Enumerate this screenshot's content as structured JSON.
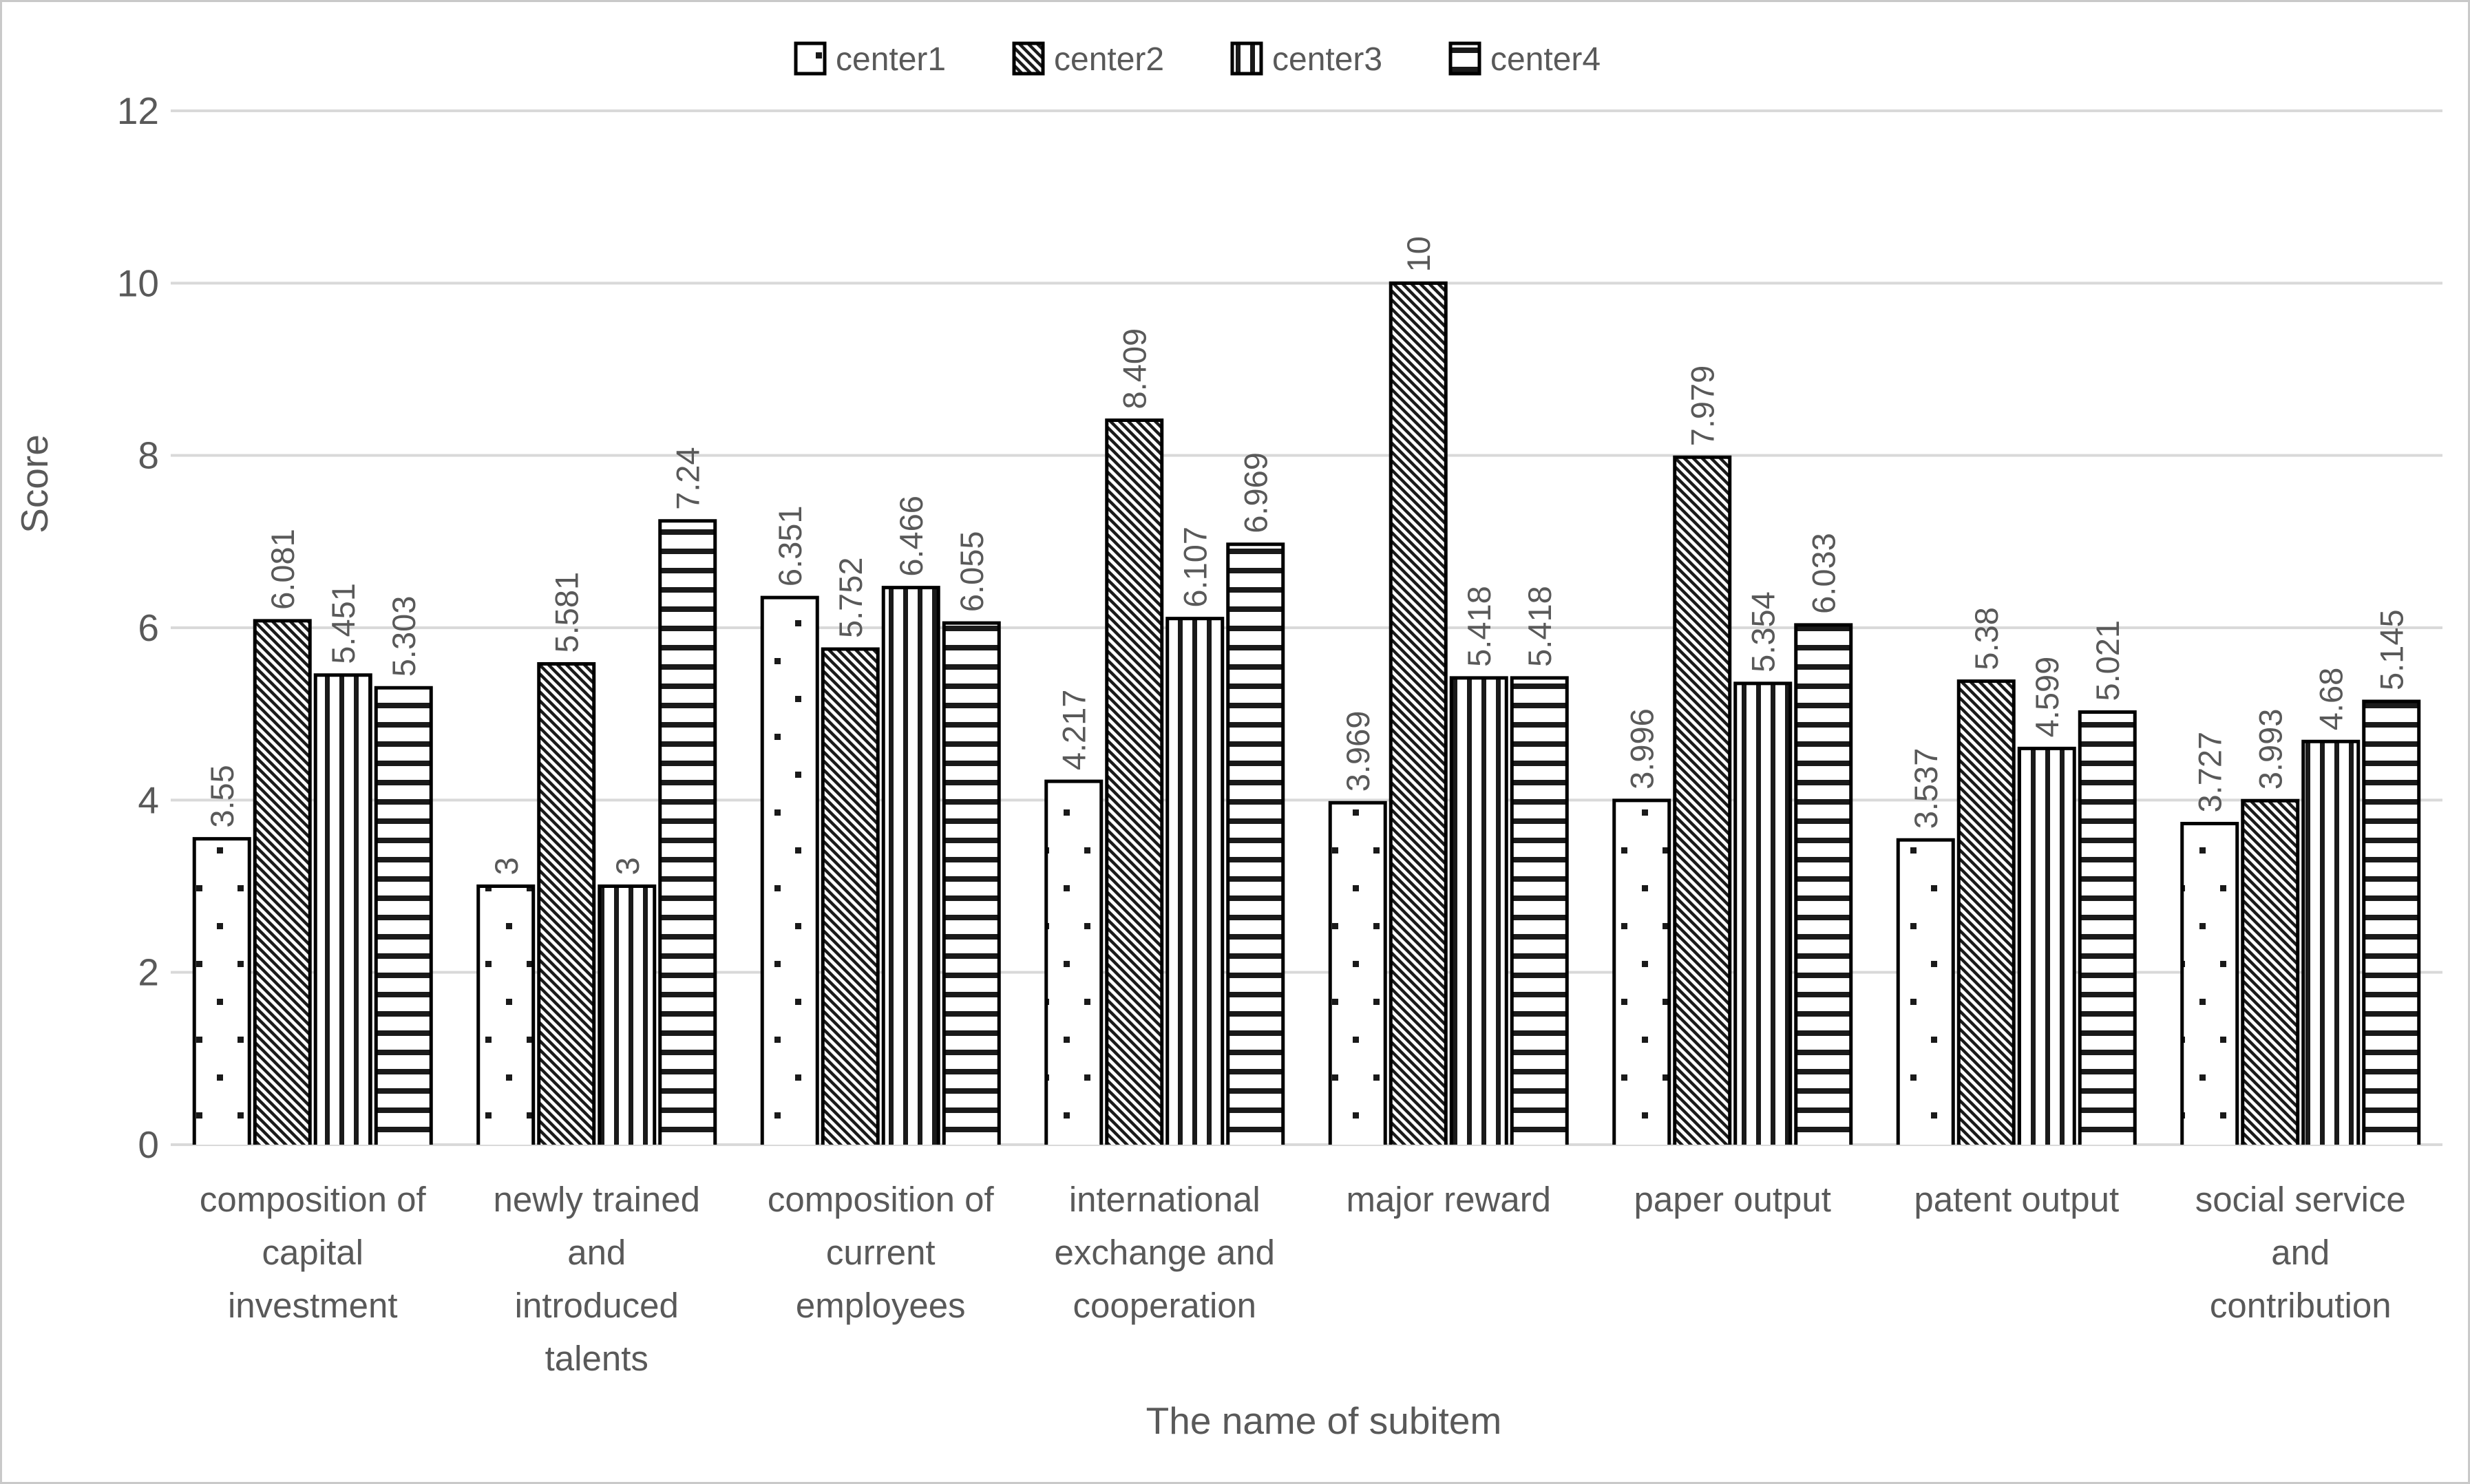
{
  "figure": {
    "background": "#ffffff",
    "frame_border": "#c9c9c9"
  },
  "colors": {
    "text": "#595959",
    "gridline": "#d9d9d9",
    "bar_outline": "#000000",
    "bar_fill_background": "#ffffff",
    "pattern_ink": "#1a1a1a"
  },
  "chart_data": {
    "type": "bar",
    "title": "",
    "xlabel": "The name of subitem",
    "ylabel": "Score",
    "ylim": [
      0,
      12
    ],
    "yticks": [
      0,
      2,
      4,
      6,
      8,
      10,
      12
    ],
    "grid": "horizontal",
    "legend_position": "top-center",
    "bar_fill": "pattern-on-white",
    "value_labels": "rotated-90-above-bars",
    "categories": [
      {
        "label": "composition of capital investment",
        "lines": [
          "composition of",
          "capital",
          "investment"
        ]
      },
      {
        "label": "newly trained and introduced talents",
        "lines": [
          "newly trained",
          "and",
          "introduced",
          "talents"
        ]
      },
      {
        "label": "composition of current employees",
        "lines": [
          "composition of",
          "current",
          "employees"
        ]
      },
      {
        "label": "international exchange and cooperation",
        "lines": [
          "international",
          "exchange and",
          "cooperation"
        ]
      },
      {
        "label": "major reward",
        "lines": [
          "major reward"
        ]
      },
      {
        "label": "paper output",
        "lines": [
          "paper output"
        ]
      },
      {
        "label": "patent output",
        "lines": [
          "patent output"
        ]
      },
      {
        "label": "social service and contribution",
        "lines": [
          "social service",
          "and",
          "contribution"
        ]
      }
    ],
    "series": [
      {
        "name": "center1",
        "pattern": "dots",
        "values": [
          3.55,
          3,
          6.351,
          4.217,
          3.969,
          3.996,
          3.537,
          3.727
        ]
      },
      {
        "name": "center2",
        "pattern": "diagonal",
        "values": [
          6.081,
          5.581,
          5.752,
          8.409,
          10,
          7.979,
          5.38,
          3.993
        ]
      },
      {
        "name": "center3",
        "pattern": "vertical",
        "values": [
          5.451,
          3,
          6.466,
          6.107,
          5.418,
          5.354,
          4.599,
          4.68
        ]
      },
      {
        "name": "center4",
        "pattern": "horizontal",
        "values": [
          5.303,
          7.24,
          6.055,
          6.969,
          5.418,
          6.033,
          5.021,
          5.145
        ]
      }
    ]
  }
}
